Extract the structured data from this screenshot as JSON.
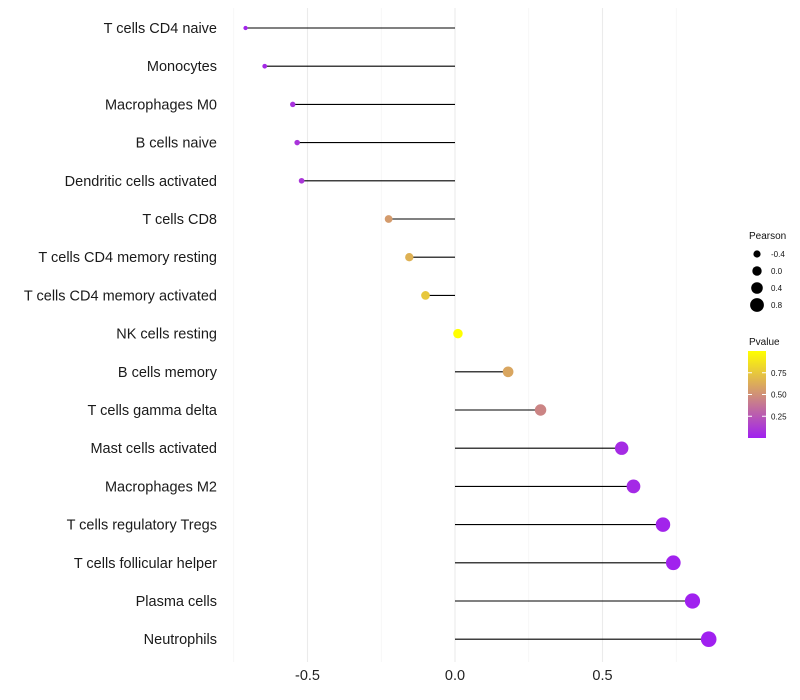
{
  "chart_data": {
    "type": "lollipop",
    "title": "",
    "xlabel": "",
    "ylabel": "",
    "xlim": [
      -0.75,
      0.95
    ],
    "x_ticks": [
      -0.5,
      0.0,
      0.5
    ],
    "x_tick_labels": [
      "-0.5",
      "0.0",
      "0.5"
    ],
    "grid": true,
    "categories": [
      "T cells CD4 naive",
      "Monocytes",
      "Macrophages M0",
      "B cells naive",
      "Dendritic cells activated",
      "T cells CD8",
      "T cells CD4 memory resting",
      "T cells CD4 memory activated",
      "NK cells resting",
      "B cells memory",
      "T cells gamma delta",
      "Mast cells activated",
      "Macrophages M2",
      "T cells regulatory  Tregs",
      "T cells follicular helper",
      "Plasma cells",
      "Neutrophils"
    ],
    "pearson": [
      -0.71,
      -0.645,
      -0.55,
      -0.535,
      -0.52,
      -0.225,
      -0.155,
      -0.1,
      0.01,
      0.18,
      0.29,
      0.565,
      0.605,
      0.705,
      0.74,
      0.805,
      0.86
    ],
    "pvalue": [
      0.02,
      0.04,
      0.08,
      0.09,
      0.1,
      0.55,
      0.65,
      0.75,
      1.0,
      0.6,
      0.45,
      0.05,
      0.04,
      0.02,
      0.01,
      0.005,
      0.001
    ],
    "size_legend": {
      "title": "Pearson",
      "values": [
        -0.4,
        0.0,
        0.4,
        0.8
      ],
      "labels": [
        "-0.4",
        "0.0",
        "0.4",
        "0.8"
      ]
    },
    "color_legend": {
      "title": "Pvalue",
      "range": [
        0.0,
        1.0
      ],
      "ticks": [
        0.25,
        0.5,
        0.75
      ],
      "tick_labels": [
        "0.25",
        "0.50",
        "0.75"
      ],
      "low_color": "#a020f0",
      "high_color": "#ffff00"
    }
  }
}
